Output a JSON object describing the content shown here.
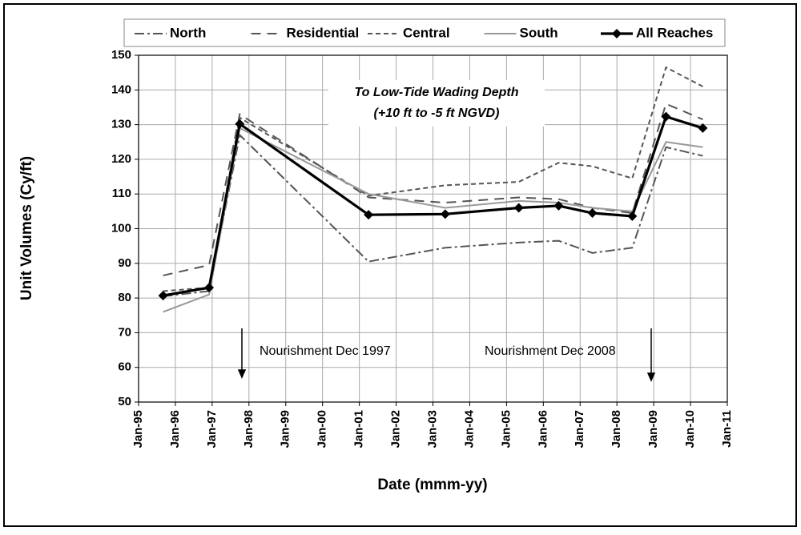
{
  "chart_data": {
    "type": "line",
    "xlabel": "Date (mmm-yy)",
    "ylabel": "Unit Volumes (Cy/ft)",
    "annotations": [
      "To Low-Tide Wading Depth",
      "(+10 ft to -5 ft NGVD)",
      "Nourishment Dec 1997",
      "Nourishment Dec 2008"
    ],
    "x": [
      "1995-09",
      "1996-12",
      "1997-10",
      "2001-04",
      "2003-05",
      "2005-05",
      "2006-06",
      "2007-05",
      "2008-06",
      "2009-05",
      "2010-05"
    ],
    "series": [
      {
        "name": "North",
        "color": "#555555",
        "line_style": "dashdot",
        "values": [
          80.5,
          82,
          127,
          90.5,
          94.5,
          96,
          96.5,
          93,
          94.5,
          123.5,
          121
        ]
      },
      {
        "name": "Residential",
        "color": "#555555",
        "line_style": "dashed",
        "values": [
          86.5,
          89.5,
          133,
          109,
          107.5,
          109,
          108.5,
          106,
          104.5,
          136,
          131.5
        ]
      },
      {
        "name": "Central",
        "color": "#555555",
        "line_style": "dotted",
        "values": [
          82,
          83,
          132,
          109.5,
          112.5,
          113.5,
          119,
          118,
          114.5,
          146.5,
          141
        ]
      },
      {
        "name": "South",
        "color": "#999999",
        "line_style": "solid",
        "values": [
          76,
          81,
          129,
          110,
          106,
          108,
          107.5,
          106,
          105,
          125,
          123.5
        ]
      },
      {
        "name": "All Reaches",
        "color": "#000000",
        "line_style": "solid",
        "marker": "diamond",
        "values": [
          80.7,
          83,
          130.2,
          104,
          104.2,
          106,
          106.6,
          104.5,
          103.6,
          132.3,
          129
        ]
      }
    ],
    "xlim": [
      "1995-01",
      "2011-01"
    ],
    "xticks": [
      {
        "value": "1995-01",
        "label": "Jan-95"
      },
      {
        "value": "1996-01",
        "label": "Jan-96"
      },
      {
        "value": "1997-01",
        "label": "Jan-97"
      },
      {
        "value": "1998-01",
        "label": "Jan-98"
      },
      {
        "value": "1999-01",
        "label": "Jan-99"
      },
      {
        "value": "2000-01",
        "label": "Jan-00"
      },
      {
        "value": "2001-01",
        "label": "Jan-01"
      },
      {
        "value": "2002-01",
        "label": "Jan-02"
      },
      {
        "value": "2003-01",
        "label": "Jan-03"
      },
      {
        "value": "2004-01",
        "label": "Jan-04"
      },
      {
        "value": "2005-01",
        "label": "Jan-05"
      },
      {
        "value": "2006-01",
        "label": "Jan-06"
      },
      {
        "value": "2007-01",
        "label": "Jan-07"
      },
      {
        "value": "2008-01",
        "label": "Jan-08"
      },
      {
        "value": "2009-01",
        "label": "Jan-09"
      },
      {
        "value": "2010-01",
        "label": "Jan-10"
      },
      {
        "value": "2011-01",
        "label": "Jan-11"
      }
    ],
    "ylim": [
      50,
      150
    ],
    "yticks": [
      50,
      60,
      70,
      80,
      90,
      100,
      110,
      120,
      130,
      140,
      150
    ],
    "grid": true,
    "legend": "top"
  }
}
